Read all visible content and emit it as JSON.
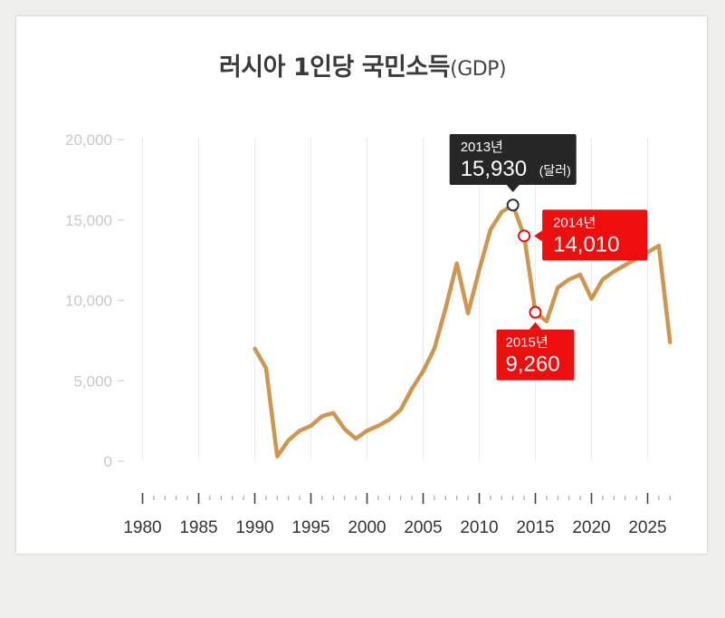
{
  "chart_data": {
    "type": "line",
    "title": "러시아 1인당 국민소득",
    "title_suffix": "(GDP)",
    "xlabel": "",
    "ylabel": "",
    "xlim": [
      1980,
      2027
    ],
    "ylim": [
      0,
      20000
    ],
    "x_ticks": [
      1980,
      1985,
      1990,
      1995,
      2000,
      2005,
      2010,
      2015,
      2020,
      2025
    ],
    "y_ticks": [
      "0",
      "5,000",
      "10,000",
      "15,000",
      "20,000"
    ],
    "y_tick_values": [
      0,
      5000,
      10000,
      15000,
      20000
    ],
    "grid": "vertical",
    "line_color": "#cf9650",
    "series": [
      {
        "x": [
          1990,
          1991,
          1992,
          1993,
          1994,
          1995,
          1996,
          1997,
          1998,
          1999,
          2000,
          2001,
          2002,
          2003,
          2004,
          2005,
          2006,
          2007,
          2008,
          2009,
          2010,
          2011,
          2012,
          2013,
          2014,
          2015,
          2016,
          2017,
          2018,
          2019,
          2020,
          2021,
          2022,
          2023,
          2024,
          2025,
          2026,
          2027
        ],
        "values": [
          7000,
          5800,
          300,
          1300,
          1900,
          2200,
          2800,
          3000,
          2000,
          1400,
          1900,
          2200,
          2600,
          3200,
          4500,
          5600,
          7000,
          9500,
          12300,
          9200,
          11900,
          14400,
          15500,
          15930,
          14010,
          9260,
          8700,
          10800,
          11300,
          11600,
          10100,
          11300,
          11800,
          12200,
          12600,
          13000,
          13400,
          7400
        ]
      }
    ],
    "annotations": [
      {
        "year_label": "2013년",
        "value_label": "15,930",
        "unit_label": "(달러)",
        "x": 2013,
        "y": 15930,
        "style": "dark"
      },
      {
        "year_label": "2014년",
        "value_label": "14,010",
        "x": 2014,
        "y": 14010,
        "style": "red"
      },
      {
        "year_label": "2015년",
        "value_label": "9,260",
        "x": 2015,
        "y": 9260,
        "style": "red"
      }
    ]
  }
}
